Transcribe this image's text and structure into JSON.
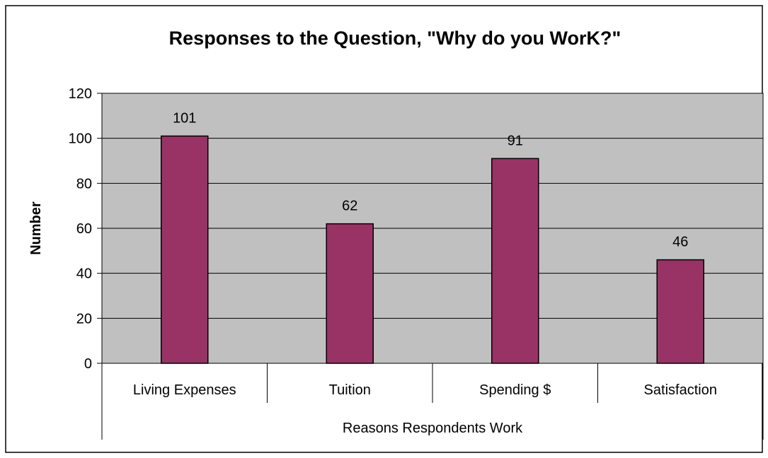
{
  "chart_data": {
    "type": "bar",
    "title": "Responses to the Question, \"Why do you WorK?\"",
    "xlabel": "Reasons Respondents Work",
    "ylabel": "Number",
    "categories": [
      "Living Expenses",
      "Tuition",
      "Spending $",
      "Satisfaction"
    ],
    "values": [
      101,
      62,
      91,
      46
    ],
    "data_labels": [
      "101",
      "62",
      "91",
      "46"
    ],
    "ylim": [
      0,
      120
    ],
    "yticks": [
      0,
      20,
      40,
      60,
      80,
      100,
      120
    ],
    "ytick_labels": [
      "0",
      "20",
      "40",
      "60",
      "80",
      "100",
      "120"
    ],
    "grid": true,
    "colors": {
      "bar": "#993366",
      "plot_background": "#c0c0c0",
      "gridline": "#000000",
      "frame": "#000000"
    }
  }
}
